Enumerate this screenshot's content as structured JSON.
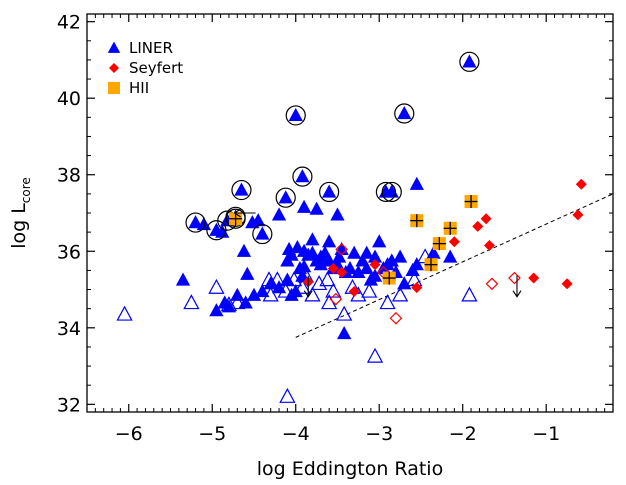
{
  "chart_data": {
    "type": "scatter",
    "xlabel": "log Eddington Ratio",
    "ylabel": "log L",
    "ylabel_sub": "core",
    "xlim": [
      -6.5,
      -0.2
    ],
    "ylim": [
      31.8,
      42.2
    ],
    "xticks": [
      -6,
      -5,
      -4,
      -3,
      -2,
      -1
    ],
    "xtick_labels": [
      "−6",
      "−5",
      "−4",
      "−3",
      "−2",
      "−1"
    ],
    "yticks": [
      32,
      34,
      36,
      38,
      40,
      42
    ],
    "ytick_labels": [
      "32",
      "34",
      "36",
      "38",
      "40",
      "42"
    ],
    "grid": false,
    "legend": {
      "placement": "top-left",
      "entries": [
        {
          "label": "LINER",
          "marker": "triangle",
          "color": "#0000ff"
        },
        {
          "label": "Seyfert",
          "marker": "diamond",
          "color": "#ff0000"
        },
        {
          "label": "HII",
          "marker": "square",
          "color": "#ffa500"
        }
      ]
    },
    "series": [
      {
        "name": "LINER",
        "marker": "triangle",
        "color": "#0000ff",
        "filled": [
          [
            -5.35,
            35.25
          ],
          [
            -5.2,
            36.75
          ],
          [
            -5.1,
            36.7
          ],
          [
            -4.95,
            36.55
          ],
          [
            -4.88,
            36.5
          ],
          [
            -4.82,
            36.8
          ],
          [
            -4.72,
            36.9
          ],
          [
            -4.65,
            37.6
          ],
          [
            -4.62,
            36.0
          ],
          [
            -4.58,
            35.4
          ],
          [
            -4.52,
            36.75
          ],
          [
            -4.45,
            36.8
          ],
          [
            -4.4,
            36.45
          ],
          [
            -4.2,
            36.95
          ],
          [
            -4.12,
            37.4
          ],
          [
            -4.08,
            36.05
          ],
          [
            -4.0,
            39.55
          ],
          [
            -3.92,
            37.95
          ],
          [
            -3.9,
            37.15
          ],
          [
            -3.75,
            37.1
          ],
          [
            -3.6,
            37.55
          ],
          [
            -3.5,
            36.95
          ],
          [
            -2.92,
            37.55
          ],
          [
            -2.85,
            37.55
          ],
          [
            -2.55,
            37.75
          ],
          [
            -2.7,
            39.6
          ],
          [
            -1.92,
            40.95
          ],
          [
            -4.95,
            34.45
          ],
          [
            -4.85,
            34.65
          ],
          [
            -4.8,
            34.55
          ],
          [
            -4.7,
            34.85
          ],
          [
            -4.6,
            34.65
          ],
          [
            -4.5,
            34.85
          ],
          [
            -4.4,
            34.95
          ],
          [
            -4.3,
            35.15
          ],
          [
            -4.2,
            35.05
          ],
          [
            -4.1,
            35.25
          ],
          [
            -4.05,
            34.85
          ],
          [
            -4.0,
            34.95
          ],
          [
            -3.95,
            35.55
          ],
          [
            -3.85,
            35.9
          ],
          [
            -3.8,
            35.95
          ],
          [
            -3.75,
            35.75
          ],
          [
            -3.7,
            35.65
          ],
          [
            -3.65,
            35.95
          ],
          [
            -3.6,
            35.75
          ],
          [
            -3.55,
            35.55
          ],
          [
            -3.5,
            35.65
          ],
          [
            -3.45,
            36.05
          ],
          [
            -3.4,
            35.45
          ],
          [
            -3.35,
            35.55
          ],
          [
            -3.3,
            35.95
          ],
          [
            -3.25,
            35.45
          ],
          [
            -3.2,
            35.75
          ],
          [
            -3.15,
            35.55
          ],
          [
            -3.1,
            35.25
          ],
          [
            -3.05,
            35.35
          ],
          [
            -3.0,
            36.25
          ],
          [
            -2.95,
            35.55
          ],
          [
            -2.9,
            35.65
          ],
          [
            -2.85,
            35.75
          ],
          [
            -2.8,
            35.45
          ],
          [
            -2.75,
            35.85
          ],
          [
            -2.7,
            35.15
          ],
          [
            -2.6,
            35.5
          ],
          [
            -4.05,
            35.9
          ],
          [
            -3.98,
            36.1
          ],
          [
            -3.9,
            35.6
          ],
          [
            -3.92,
            35.35
          ],
          [
            -4.1,
            35.75
          ],
          [
            -3.6,
            36.25
          ],
          [
            -3.48,
            35.85
          ],
          [
            -3.15,
            35.95
          ],
          [
            -3.05,
            35.85
          ],
          [
            -3.42,
            33.85
          ],
          [
            -2.55,
            35.65
          ],
          [
            -2.35,
            35.95
          ],
          [
            -2.15,
            35.85
          ],
          [
            -3.8,
            36.3
          ],
          [
            -3.7,
            35.85
          ],
          [
            -3.9,
            36.0
          ]
        ],
        "open": [
          [
            -6.05,
            34.35
          ],
          [
            -5.25,
            34.65
          ],
          [
            -4.95,
            35.05
          ],
          [
            -4.8,
            34.6
          ],
          [
            -4.7,
            34.65
          ],
          [
            -4.32,
            35.25
          ],
          [
            -4.3,
            34.85
          ],
          [
            -4.22,
            35.25
          ],
          [
            -4.12,
            34.95
          ],
          [
            -4.02,
            35.25
          ],
          [
            -3.88,
            35.35
          ],
          [
            -3.92,
            35.05
          ],
          [
            -3.8,
            34.85
          ],
          [
            -3.72,
            35.15
          ],
          [
            -3.62,
            35.25
          ],
          [
            -3.55,
            34.95
          ],
          [
            -3.42,
            34.35
          ],
          [
            -3.32,
            35.05
          ],
          [
            -3.12,
            34.95
          ],
          [
            -3.05,
            33.25
          ],
          [
            -2.9,
            34.65
          ],
          [
            -2.75,
            34.85
          ],
          [
            -2.58,
            35.25
          ],
          [
            -2.45,
            35.85
          ],
          [
            -1.92,
            34.85
          ],
          [
            -4.1,
            32.2
          ],
          [
            -3.6,
            34.65
          ],
          [
            -3.25,
            34.85
          ]
        ],
        "circled": [
          [
            -5.2,
            36.75
          ],
          [
            -4.95,
            36.55
          ],
          [
            -4.82,
            36.8
          ],
          [
            -4.72,
            36.9
          ],
          [
            -4.65,
            37.6
          ],
          [
            -4.4,
            36.45
          ],
          [
            -4.12,
            37.4
          ],
          [
            -4.0,
            39.55
          ],
          [
            -3.92,
            37.95
          ],
          [
            -3.6,
            37.55
          ],
          [
            -2.92,
            37.55
          ],
          [
            -2.85,
            37.55
          ],
          [
            -2.7,
            39.6
          ],
          [
            -1.92,
            40.95
          ]
        ]
      },
      {
        "name": "Seyfert",
        "marker": "diamond",
        "color": "#ff0000",
        "filled": [
          [
            -3.85,
            35.2
          ],
          [
            -3.55,
            35.55
          ],
          [
            -3.45,
            35.45
          ],
          [
            -3.3,
            34.95
          ],
          [
            -3.05,
            35.65
          ],
          [
            -2.55,
            35.05
          ],
          [
            -2.1,
            36.25
          ],
          [
            -1.82,
            36.65
          ],
          [
            -1.72,
            36.85
          ],
          [
            -1.68,
            36.15
          ],
          [
            -1.15,
            35.3
          ],
          [
            -0.75,
            35.15
          ],
          [
            -0.62,
            36.95
          ],
          [
            -0.58,
            37.75
          ]
        ],
        "open": [
          [
            -3.52,
            34.75
          ],
          [
            -3.45,
            36.05
          ],
          [
            -2.95,
            35.45
          ],
          [
            -2.8,
            34.25
          ],
          [
            -1.65,
            35.15
          ],
          [
            -1.38,
            35.3
          ]
        ]
      },
      {
        "name": "HII",
        "marker": "square",
        "color": "#ffa500",
        "filled": [
          [
            -2.88,
            35.3
          ],
          [
            -2.55,
            36.8
          ],
          [
            -2.38,
            35.65
          ],
          [
            -2.28,
            36.2
          ],
          [
            -2.15,
            36.6
          ],
          [
            -1.9,
            37.3
          ],
          [
            -4.72,
            36.85
          ]
        ],
        "circled": [
          [
            -4.72,
            36.85
          ]
        ]
      }
    ],
    "upper_limits": [
      [
        -3.85,
        35.1
      ],
      [
        -1.35,
        35.1
      ]
    ],
    "left_limits": [
      [
        -4.6,
        37.0
      ]
    ],
    "reference_line": {
      "style": "dashed",
      "x": [
        -4.0,
        -0.2
      ],
      "y": [
        33.75,
        37.5
      ]
    }
  }
}
